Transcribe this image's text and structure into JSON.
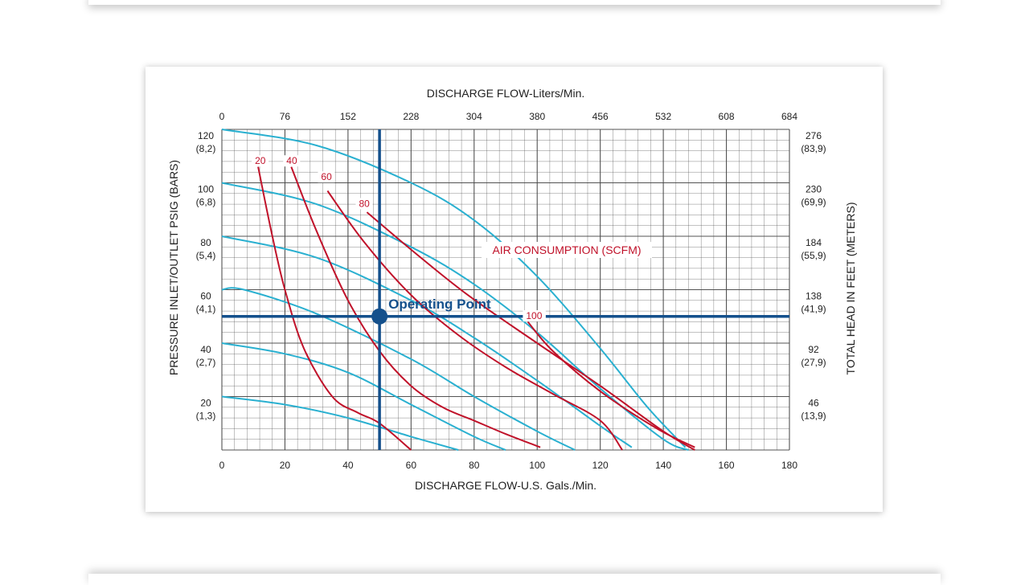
{
  "chart_data": {
    "type": "line",
    "top_axis_label": "DISCHARGE FLOW-Liters/Min.",
    "top_ticks": [
      "0",
      "76",
      "152",
      "228",
      "304",
      "380",
      "456",
      "532",
      "608",
      "684"
    ],
    "xlabel": "DISCHARGE FLOW-U.S. Gals./Min.",
    "x_ticks": [
      "0",
      "20",
      "40",
      "60",
      "80",
      "100",
      "120",
      "140",
      "160",
      "180"
    ],
    "xlim": [
      0,
      180
    ],
    "ylabel_left": "PRESSURE INLET/OUTLET PSIG (BARS)",
    "left_ticks": [
      {
        "value": 120,
        "psig": "120",
        "bar": "(8,2)"
      },
      {
        "value": 100,
        "psig": "100",
        "bar": "(6,8)"
      },
      {
        "value": 80,
        "psig": "80",
        "bar": "(5,4)"
      },
      {
        "value": 60,
        "psig": "60",
        "bar": "(4,1)"
      },
      {
        "value": 40,
        "psig": "40",
        "bar": "(2,7)"
      },
      {
        "value": 20,
        "psig": "20",
        "bar": "(1,3)"
      }
    ],
    "ylim": [
      0,
      120
    ],
    "ylabel_right": "TOTAL HEAD IN FEET (METERS)",
    "right_ticks": [
      {
        "value": 120,
        "feet": "276",
        "meters": "(83,9)"
      },
      {
        "value": 100,
        "feet": "230",
        "meters": "(69,9)"
      },
      {
        "value": 80,
        "feet": "184",
        "meters": "(55,9)"
      },
      {
        "value": 60,
        "feet": "138",
        "meters": "(41,9)"
      },
      {
        "value": 40,
        "feet": "92",
        "meters": "(27,9)"
      },
      {
        "value": 20,
        "feet": "46",
        "meters": "(13,9)"
      }
    ],
    "grid": true,
    "pressure_curves": [
      {
        "points": [
          [
            0,
            120
          ],
          [
            30,
            114
          ],
          [
            60,
            100
          ],
          [
            80,
            86
          ],
          [
            100,
            65
          ],
          [
            120,
            38
          ],
          [
            135,
            16
          ],
          [
            147,
            1
          ]
        ]
      },
      {
        "points": [
          [
            0,
            100
          ],
          [
            30,
            92
          ],
          [
            60,
            76
          ],
          [
            80,
            62
          ],
          [
            100,
            44
          ],
          [
            120,
            23
          ],
          [
            140,
            4
          ],
          [
            148,
            0
          ]
        ]
      },
      {
        "points": [
          [
            0,
            80
          ],
          [
            30,
            72
          ],
          [
            60,
            56
          ],
          [
            80,
            42
          ],
          [
            100,
            26
          ],
          [
            120,
            9
          ],
          [
            130,
            1
          ]
        ]
      },
      {
        "points": [
          [
            0,
            60
          ],
          [
            7,
            60
          ],
          [
            30,
            51
          ],
          [
            60,
            34
          ],
          [
            80,
            20
          ],
          [
            100,
            7
          ],
          [
            112,
            0
          ]
        ]
      },
      {
        "points": [
          [
            0,
            40
          ],
          [
            20,
            36
          ],
          [
            40,
            29
          ],
          [
            60,
            17
          ],
          [
            80,
            5
          ],
          [
            90,
            0
          ]
        ]
      },
      {
        "points": [
          [
            0,
            20
          ],
          [
            20,
            17
          ],
          [
            40,
            12
          ],
          [
            60,
            5
          ],
          [
            75,
            0
          ]
        ]
      }
    ],
    "air_consumption_label": "AIR CONSUMPTION (SCFM)",
    "air_curves": [
      {
        "label": "20",
        "label_at": [
          12,
          107
        ],
        "points": [
          [
            11.5,
            106
          ],
          [
            16,
            80
          ],
          [
            20,
            60
          ],
          [
            26,
            38
          ],
          [
            35,
            20
          ],
          [
            43,
            14
          ],
          [
            50,
            10
          ],
          [
            60,
            0
          ]
        ]
      },
      {
        "label": "40",
        "label_at": [
          22,
          107
        ],
        "points": [
          [
            22,
            106
          ],
          [
            30,
            82
          ],
          [
            40,
            56
          ],
          [
            50,
            37
          ],
          [
            60,
            24
          ],
          [
            70,
            16
          ],
          [
            80,
            11
          ],
          [
            90,
            6
          ],
          [
            101,
            1
          ]
        ]
      },
      {
        "label": "60",
        "label_at": [
          33,
          101
        ],
        "points": [
          [
            33.5,
            97
          ],
          [
            45,
            78
          ],
          [
            60,
            58
          ],
          [
            75,
            43
          ],
          [
            90,
            31
          ],
          [
            105,
            21
          ],
          [
            120,
            11
          ],
          [
            127,
            0
          ]
        ]
      },
      {
        "label": "80",
        "label_at": [
          45,
          91
        ],
        "points": [
          [
            46,
            89
          ],
          [
            60,
            75
          ],
          [
            78,
            58
          ],
          [
            100,
            40
          ],
          [
            120,
            24
          ],
          [
            140,
            7
          ],
          [
            150,
            0
          ]
        ]
      },
      {
        "label": "100",
        "label_at": [
          98,
          49
        ],
        "points": [
          [
            97,
            48
          ],
          [
            105,
            37
          ],
          [
            120,
            22
          ],
          [
            138,
            8
          ],
          [
            150,
            1
          ]
        ]
      }
    ],
    "operating_point": {
      "label": "Operating Point",
      "x": 50,
      "y": 50
    },
    "colors": {
      "grid": "#4a4a4a",
      "pressure_curve": "#2ab0d0",
      "air_curve": "#c0122a",
      "operating_point": "#14508c",
      "axis_text": "#222222"
    }
  }
}
